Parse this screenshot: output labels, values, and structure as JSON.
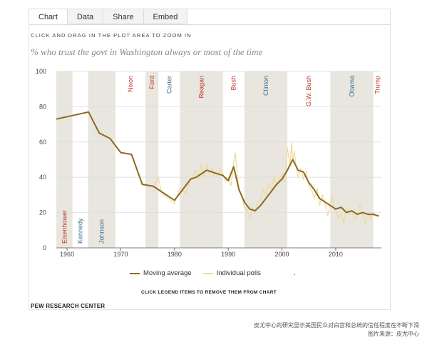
{
  "tabs": [
    "Chart",
    "Data",
    "Share",
    "Embed"
  ],
  "instruction": "CLICK AND DRAG IN THE PLOT AREA TO ZOOM IN",
  "legend_hint": "CLICK LEGEND ITEMS TO REMOVE THEM FROM CHART",
  "source": "PEW RESEARCH CENTER",
  "caption_line1": "皮尤中心的研究显示美国民众对白宫和总统的信任程度在不断下滑",
  "caption_line2": "图片来源：皮尤中心",
  "colors": {
    "moving_average": "#8b6a1e",
    "individual_polls": "#f0d99b",
    "band": "#e8e6df",
    "republican": "#c0392b",
    "democrat": "#3c6e8f"
  },
  "chart_data": {
    "type": "line",
    "title": "% who trust the govt in Washington always or most of the time",
    "xlim": [
      1958,
      2018.5
    ],
    "ylim": [
      0,
      100
    ],
    "xticks": [
      1960,
      1970,
      1980,
      1990,
      2000,
      2010
    ],
    "yticks": [
      0,
      20,
      40,
      60,
      80,
      100
    ],
    "grid": true,
    "legend_position": "bottom",
    "presidents": [
      {
        "name": "Eisenhower",
        "start": 1958,
        "end": 1961,
        "party": "R",
        "label_pos": "bottom"
      },
      {
        "name": "Kennedy",
        "start": 1961,
        "end": 1963.9,
        "party": "D",
        "label_pos": "bottom"
      },
      {
        "name": "Johnson",
        "start": 1963.9,
        "end": 1969,
        "party": "D",
        "label_pos": "bottom"
      },
      {
        "name": "Nixon",
        "start": 1969,
        "end": 1974.6,
        "party": "R",
        "label_pos": "top"
      },
      {
        "name": "Ford",
        "start": 1974.6,
        "end": 1977,
        "party": "R",
        "label_pos": "top"
      },
      {
        "name": "Carter",
        "start": 1977,
        "end": 1981,
        "party": "D",
        "label_pos": "top"
      },
      {
        "name": "Reagan",
        "start": 1981,
        "end": 1989,
        "party": "R",
        "label_pos": "top"
      },
      {
        "name": "Bush",
        "start": 1989,
        "end": 1993,
        "party": "R",
        "label_pos": "top"
      },
      {
        "name": "Clinton",
        "start": 1993,
        "end": 2001,
        "party": "D",
        "label_pos": "top"
      },
      {
        "name": "G.W. Bush",
        "start": 2001,
        "end": 2009,
        "party": "R",
        "label_pos": "top"
      },
      {
        "name": "Obama",
        "start": 2009,
        "end": 2017,
        "party": "D",
        "label_pos": "top"
      },
      {
        "name": "Trump",
        "start": 2017,
        "end": 2018.5,
        "party": "R",
        "label_pos": "top"
      }
    ],
    "series": [
      {
        "name": "Moving average",
        "x": [
          1958,
          1964,
          1966,
          1968,
          1970,
          1972,
          1974,
          1976,
          1977,
          1978,
          1979,
          1980,
          1981,
          1982,
          1983,
          1984,
          1985,
          1986,
          1987,
          1988,
          1989,
          1990,
          1991,
          1992,
          1993,
          1994,
          1995,
          1996,
          1997,
          1998,
          1999,
          2000,
          2001,
          2002,
          2003,
          2004,
          2005,
          2006,
          2007,
          2008,
          2009,
          2010,
          2011,
          2012,
          2013,
          2014,
          2015,
          2016,
          2017,
          2018
        ],
        "y": [
          73,
          77,
          65,
          62,
          54,
          53,
          36,
          35,
          33,
          31,
          29,
          27,
          31,
          35,
          39,
          40,
          42,
          44,
          43,
          42,
          41,
          38,
          46,
          33,
          26,
          22,
          21,
          24,
          28,
          32,
          36,
          39,
          44,
          50,
          44,
          43,
          37,
          33,
          28,
          26,
          24,
          22,
          23,
          20,
          21,
          19,
          20,
          19,
          19,
          18
        ]
      },
      {
        "name": "Individual polls",
        "x": [
          1976,
          1977,
          1977.5,
          1978,
          1979,
          1980,
          1981,
          1982,
          1983,
          1984,
          1984.5,
          1985,
          1985.5,
          1986,
          1986.5,
          1987,
          1987.5,
          1988,
          1988.5,
          1989,
          1989.5,
          1990,
          1990.5,
          1991,
          1991.3,
          1991.6,
          1992,
          1992.5,
          1993,
          1993.5,
          1994,
          1994.5,
          1995,
          1995.5,
          1996,
          1996.5,
          1997,
          1997.5,
          1998,
          1998.5,
          1999,
          1999.5,
          2000,
          2000.5,
          2001,
          2001.5,
          2001.8,
          2002,
          2002.3,
          2002.6,
          2003,
          2003.5,
          2004,
          2004.5,
          2005,
          2005.5,
          2006,
          2006.5,
          2007,
          2007.5,
          2008,
          2008.5,
          2009,
          2009.3,
          2009.6,
          2010,
          2010.5,
          2011,
          2011.5,
          2012,
          2012.5,
          2013,
          2013.5,
          2014,
          2014.5,
          2015,
          2015.5,
          2016,
          2016.5,
          2017,
          2017.5,
          2018
        ],
        "y": [
          34,
          40,
          32,
          30,
          28,
          25,
          34,
          31,
          38,
          44,
          39,
          48,
          40,
          47,
          42,
          45,
          40,
          41,
          45,
          42,
          38,
          40,
          35,
          48,
          54,
          44,
          32,
          30,
          23,
          21,
          17,
          23,
          20,
          26,
          27,
          33,
          30,
          36,
          33,
          40,
          35,
          39,
          42,
          37,
          57,
          46,
          60,
          49,
          55,
          46,
          40,
          45,
          39,
          43,
          35,
          33,
          28,
          34,
          24,
          30,
          25,
          18,
          25,
          30,
          23,
          21,
          17,
          19,
          14,
          23,
          19,
          21,
          16,
          18,
          24,
          19,
          14,
          20,
          16,
          20,
          18,
          19
        ]
      }
    ]
  }
}
